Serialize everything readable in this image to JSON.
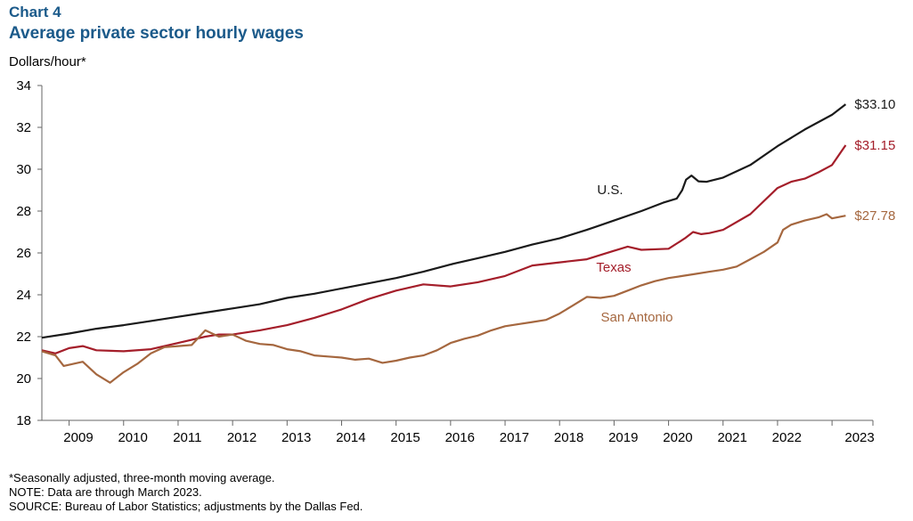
{
  "header": {
    "chart_number": "Chart 4",
    "title": "Average private sector hourly wages"
  },
  "notes": {
    "footnote": "*Seasonally adjusted, three-month moving average.",
    "note": "NOTE: Data are through March 2023.",
    "source": "SOURCE: Bureau of Labor Statistics; adjustments by the Dallas Fed."
  },
  "chart_data": {
    "type": "line",
    "title": "Average private sector hourly wages",
    "ylabel": "Dollars/hour*",
    "xlabel": "",
    "ylim": [
      18,
      34
    ],
    "yticks": [
      18,
      20,
      22,
      24,
      26,
      28,
      30,
      32,
      34
    ],
    "xlim": [
      2008.5,
      2023.75
    ],
    "xtick_labels": [
      "2009",
      "2010",
      "2011",
      "2012",
      "2013",
      "2014",
      "2015",
      "2016",
      "2017",
      "2018",
      "2019",
      "2020",
      "2021",
      "2022",
      "2023"
    ],
    "grid": false,
    "series": [
      {
        "name": "U.S.",
        "color": "#1a1a1a",
        "end_label": "$33.10",
        "points": [
          [
            2008.5,
            21.95
          ],
          [
            2009.0,
            22.15
          ],
          [
            2009.5,
            22.38
          ],
          [
            2010.0,
            22.55
          ],
          [
            2010.5,
            22.75
          ],
          [
            2011.0,
            22.95
          ],
          [
            2011.5,
            23.15
          ],
          [
            2012.0,
            23.35
          ],
          [
            2012.5,
            23.55
          ],
          [
            2013.0,
            23.85
          ],
          [
            2013.5,
            24.05
          ],
          [
            2014.0,
            24.3
          ],
          [
            2014.5,
            24.55
          ],
          [
            2015.0,
            24.8
          ],
          [
            2015.5,
            25.1
          ],
          [
            2016.0,
            25.45
          ],
          [
            2016.5,
            25.75
          ],
          [
            2017.0,
            26.05
          ],
          [
            2017.5,
            26.4
          ],
          [
            2018.0,
            26.7
          ],
          [
            2018.5,
            27.1
          ],
          [
            2019.0,
            27.55
          ],
          [
            2019.5,
            28.0
          ],
          [
            2019.9,
            28.4
          ],
          [
            2020.15,
            28.6
          ],
          [
            2020.25,
            29.0
          ],
          [
            2020.32,
            29.5
          ],
          [
            2020.42,
            29.7
          ],
          [
            2020.55,
            29.42
          ],
          [
            2020.7,
            29.4
          ],
          [
            2021.0,
            29.6
          ],
          [
            2021.5,
            30.2
          ],
          [
            2022.0,
            31.1
          ],
          [
            2022.5,
            31.9
          ],
          [
            2023.0,
            32.6
          ],
          [
            2023.25,
            33.1
          ]
        ]
      },
      {
        "name": "Texas",
        "color": "#a41e2a",
        "end_label": "$31.15",
        "points": [
          [
            2008.5,
            21.35
          ],
          [
            2008.75,
            21.2
          ],
          [
            2009.0,
            21.45
          ],
          [
            2009.25,
            21.55
          ],
          [
            2009.5,
            21.35
          ],
          [
            2010.0,
            21.3
          ],
          [
            2010.5,
            21.4
          ],
          [
            2011.0,
            21.7
          ],
          [
            2011.5,
            22.0
          ],
          [
            2011.75,
            22.1
          ],
          [
            2012.0,
            22.1
          ],
          [
            2012.5,
            22.3
          ],
          [
            2013.0,
            22.55
          ],
          [
            2013.5,
            22.9
          ],
          [
            2014.0,
            23.3
          ],
          [
            2014.5,
            23.8
          ],
          [
            2015.0,
            24.2
          ],
          [
            2015.5,
            24.5
          ],
          [
            2016.0,
            24.4
          ],
          [
            2016.5,
            24.6
          ],
          [
            2017.0,
            24.9
          ],
          [
            2017.5,
            25.4
          ],
          [
            2018.0,
            25.55
          ],
          [
            2018.5,
            25.7
          ],
          [
            2019.0,
            26.1
          ],
          [
            2019.25,
            26.3
          ],
          [
            2019.5,
            26.15
          ],
          [
            2020.0,
            26.2
          ],
          [
            2020.3,
            26.7
          ],
          [
            2020.45,
            27.0
          ],
          [
            2020.6,
            26.9
          ],
          [
            2020.75,
            26.95
          ],
          [
            2021.0,
            27.1
          ],
          [
            2021.5,
            27.85
          ],
          [
            2022.0,
            29.1
          ],
          [
            2022.25,
            29.4
          ],
          [
            2022.5,
            29.55
          ],
          [
            2022.75,
            29.85
          ],
          [
            2023.0,
            30.2
          ],
          [
            2023.25,
            31.15
          ]
        ]
      },
      {
        "name": "San Antonio",
        "color": "#a5673f",
        "end_label": "$27.78",
        "points": [
          [
            2008.5,
            21.3
          ],
          [
            2008.75,
            21.1
          ],
          [
            2008.9,
            20.6
          ],
          [
            2009.25,
            20.8
          ],
          [
            2009.5,
            20.2
          ],
          [
            2009.75,
            19.8
          ],
          [
            2010.0,
            20.3
          ],
          [
            2010.25,
            20.7
          ],
          [
            2010.5,
            21.2
          ],
          [
            2010.75,
            21.5
          ],
          [
            2011.0,
            21.55
          ],
          [
            2011.25,
            21.6
          ],
          [
            2011.5,
            22.3
          ],
          [
            2011.75,
            22.0
          ],
          [
            2012.0,
            22.1
          ],
          [
            2012.25,
            21.8
          ],
          [
            2012.5,
            21.65
          ],
          [
            2012.75,
            21.6
          ],
          [
            2013.0,
            21.4
          ],
          [
            2013.25,
            21.3
          ],
          [
            2013.5,
            21.1
          ],
          [
            2013.75,
            21.05
          ],
          [
            2014.0,
            21.0
          ],
          [
            2014.25,
            20.9
          ],
          [
            2014.5,
            20.95
          ],
          [
            2014.75,
            20.75
          ],
          [
            2015.0,
            20.85
          ],
          [
            2015.25,
            21.0
          ],
          [
            2015.5,
            21.1
          ],
          [
            2015.75,
            21.35
          ],
          [
            2016.0,
            21.7
          ],
          [
            2016.25,
            21.9
          ],
          [
            2016.5,
            22.05
          ],
          [
            2016.75,
            22.3
          ],
          [
            2017.0,
            22.5
          ],
          [
            2017.25,
            22.6
          ],
          [
            2017.5,
            22.7
          ],
          [
            2017.75,
            22.8
          ],
          [
            2018.0,
            23.1
          ],
          [
            2018.25,
            23.5
          ],
          [
            2018.5,
            23.9
          ],
          [
            2018.75,
            23.85
          ],
          [
            2019.0,
            23.95
          ],
          [
            2019.25,
            24.2
          ],
          [
            2019.5,
            24.45
          ],
          [
            2019.75,
            24.65
          ],
          [
            2020.0,
            24.8
          ],
          [
            2020.25,
            24.9
          ],
          [
            2020.5,
            25.0
          ],
          [
            2020.75,
            25.1
          ],
          [
            2021.0,
            25.2
          ],
          [
            2021.25,
            25.35
          ],
          [
            2021.5,
            25.7
          ],
          [
            2021.75,
            26.05
          ],
          [
            2022.0,
            26.5
          ],
          [
            2022.1,
            27.1
          ],
          [
            2022.25,
            27.35
          ],
          [
            2022.5,
            27.55
          ],
          [
            2022.75,
            27.7
          ],
          [
            2022.9,
            27.85
          ],
          [
            2023.0,
            27.65
          ],
          [
            2023.25,
            27.78
          ]
        ]
      }
    ],
    "annotations": [
      {
        "series": "U.S.",
        "text": "U.S.",
        "near_year": 2019.4
      },
      {
        "series": "Texas",
        "text": "Texas",
        "near_year": 2019.1
      },
      {
        "series": "San Antonio",
        "text": "San Antonio",
        "near_year": 2019.8
      }
    ]
  }
}
